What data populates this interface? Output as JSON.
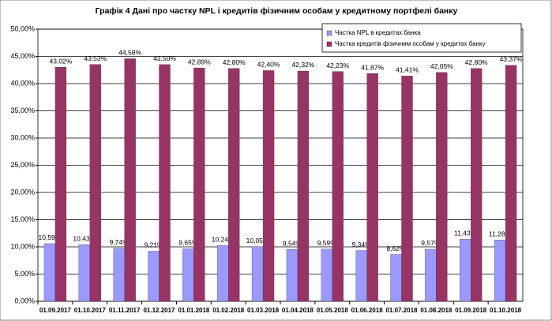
{
  "chart_data": {
    "type": "bar",
    "title": "Графік 4 Дані про частку NPL і кредитів фізичним особам у кредитному портфелі банку",
    "categories": [
      "01.09.2017",
      "01.10.2017",
      "01.11.2017",
      "01.12.2017",
      "01.01.2018",
      "01.02.2018",
      "01.03.2018",
      "01.04.2018",
      "01.05.2018",
      "01.06.2018",
      "01.07.2018",
      "01.08.2018",
      "01.09.2018",
      "01.10.2018"
    ],
    "series": [
      {
        "name": "Частка NPL в кредитах банка",
        "color": "#9999ff",
        "values": [
          10.59,
          10.43,
          9.74,
          9.21,
          9.65,
          10.24,
          10.05,
          9.54,
          9.59,
          9.34,
          8.62,
          9.57,
          11.43,
          11.28
        ],
        "value_labels": [
          "10,59%",
          "10,43%",
          "9,74%",
          "9,21%",
          "9,65%",
          "10,24%",
          "10,05%",
          "9,54%",
          "9,59%",
          "9,34%",
          "8,62%",
          "9,57%",
          "11,43%",
          "11,28%"
        ]
      },
      {
        "name": "Частка кредитів фізичним особам у кредитах банку",
        "color": "#993366",
        "values": [
          43.02,
          43.53,
          44.58,
          43.5,
          42.89,
          42.8,
          42.4,
          42.32,
          42.23,
          41.87,
          41.41,
          42.05,
          42.8,
          43.37
        ],
        "value_labels": [
          "43,02%",
          "43,53%",
          "44,58%",
          "43,50%",
          "42,89%",
          "42,80%",
          "42,40%",
          "42,32%",
          "42,23%",
          "41,87%",
          "41,41%",
          "42,05%",
          "42,80%",
          "43,37%"
        ]
      }
    ],
    "ylim": [
      0,
      50
    ],
    "yticks": [
      {
        "value": 0,
        "label": "0,00%"
      },
      {
        "value": 5,
        "label": "5,00%"
      },
      {
        "value": 10,
        "label": "10,00%"
      },
      {
        "value": 15,
        "label": "15,00%"
      },
      {
        "value": 20,
        "label": "20,00%"
      },
      {
        "value": 25,
        "label": "25,00%"
      },
      {
        "value": 30,
        "label": "30,00%"
      },
      {
        "value": 35,
        "label": "35,00%"
      },
      {
        "value": 40,
        "label": "40,00%"
      },
      {
        "value": 45,
        "label": "45,00%"
      },
      {
        "value": 50,
        "label": "50,00%"
      }
    ],
    "grid": true
  }
}
